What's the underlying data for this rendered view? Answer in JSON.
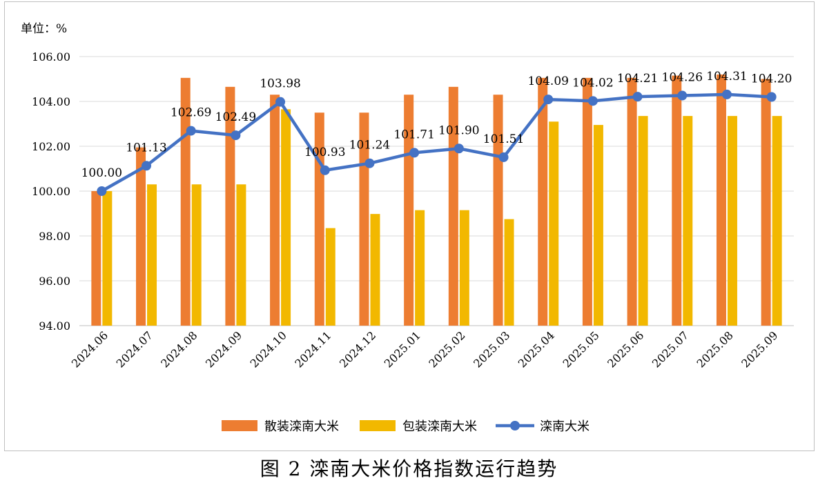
{
  "caption": "图 2  滦南大米价格指数运行趋势",
  "chart_data": {
    "type": "bar",
    "unit_label": "单位：%",
    "categories": [
      "2024.06",
      "2024.07",
      "2024.08",
      "2024.09",
      "2024.10",
      "2024.11",
      "2024.12",
      "2025.01",
      "2025.02",
      "2025.03",
      "2025.04",
      "2025.05",
      "2025.06",
      "2025.07",
      "2025.08",
      "2025.09"
    ],
    "y_ticks": [
      "94.00",
      "96.00",
      "98.00",
      "100.00",
      "102.00",
      "104.00",
      "106.00"
    ],
    "ylim": [
      94,
      106
    ],
    "grid": true,
    "legend_position": "bottom",
    "series": [
      {
        "name": "散装滦南大米",
        "type": "bar",
        "color": "#ED7D31",
        "values": [
          100.0,
          101.95,
          105.05,
          104.65,
          104.3,
          103.5,
          103.5,
          104.3,
          104.65,
          104.3,
          105.05,
          105.05,
          105.05,
          105.15,
          105.2,
          105.0
        ]
      },
      {
        "name": "包装滦南大米",
        "type": "bar",
        "color": "#F2B800",
        "values": [
          100.0,
          100.3,
          100.3,
          100.3,
          103.65,
          98.35,
          98.98,
          99.15,
          99.15,
          98.75,
          103.1,
          102.95,
          103.35,
          103.35,
          103.35,
          103.35
        ]
      },
      {
        "name": "滦南大米",
        "type": "line",
        "color": "#4472C4",
        "values": [
          100.0,
          101.13,
          102.69,
          102.49,
          103.98,
          100.93,
          101.24,
          101.71,
          101.9,
          101.51,
          104.09,
          104.02,
          104.21,
          104.26,
          104.31,
          104.2
        ],
        "data_labels": [
          "100.00",
          "101.13",
          "102.69",
          "102.49",
          "103.98",
          "100.93",
          "101.24",
          "101.71",
          "101.90",
          "101.51",
          "104.09",
          "104.02",
          "104.21",
          "104.26",
          "104.31",
          "104.20"
        ]
      }
    ]
  }
}
